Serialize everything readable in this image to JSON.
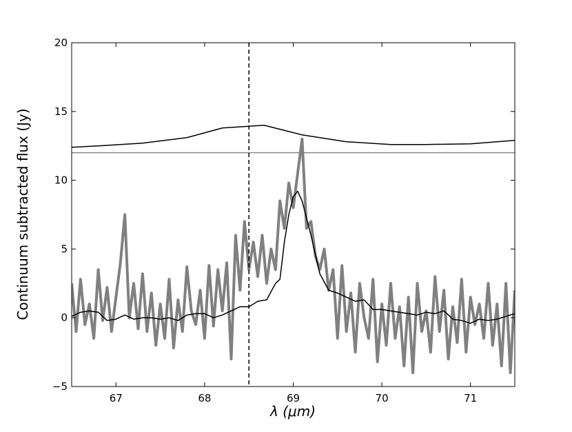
{
  "chart_data": {
    "type": "line",
    "xlabel": "λ (μm)",
    "ylabel": "Continuum subtracted flux (Jy)",
    "xlim": [
      66.5,
      71.5
    ],
    "xticks": [
      67,
      68,
      69,
      70,
      71
    ],
    "ylim": [
      -5,
      20
    ],
    "yticks": [
      {
        "value": -5,
        "label": "−5"
      },
      0,
      5,
      10,
      15,
      20
    ],
    "hline": 12,
    "hline_color": "#888888",
    "vline": 68.5,
    "vline_color": "#000000",
    "series": [
      {
        "color": "#808080",
        "width": 4,
        "x": [
          66.5,
          66.55,
          66.6,
          66.65,
          66.7,
          66.75,
          66.8,
          66.85,
          66.9,
          66.95,
          67.0,
          67.05,
          67.1,
          67.15,
          67.2,
          67.25,
          67.3,
          67.35,
          67.4,
          67.45,
          67.5,
          67.55,
          67.6,
          67.65,
          67.7,
          67.75,
          67.8,
          67.85,
          67.9,
          67.95,
          68.0,
          68.05,
          68.1,
          68.15,
          68.2,
          68.25,
          68.3,
          68.35,
          68.4,
          68.45,
          68.5,
          68.55,
          68.6,
          68.65,
          68.7,
          68.75,
          68.8,
          68.85,
          68.9,
          68.95,
          69.0,
          69.05,
          69.1,
          69.15,
          69.2,
          69.25,
          69.3,
          69.35,
          69.4,
          69.45,
          69.5,
          69.55,
          69.6,
          69.65,
          69.7,
          69.75,
          69.8,
          69.85,
          69.9,
          69.95,
          70.0,
          70.05,
          70.1,
          70.15,
          70.2,
          70.25,
          70.3,
          70.35,
          70.4,
          70.45,
          70.5,
          70.55,
          70.6,
          70.65,
          70.7,
          70.75,
          70.8,
          70.85,
          70.9,
          70.95,
          71.0,
          71.05,
          71.1,
          71.15,
          71.2,
          71.25,
          71.3,
          71.35,
          71.4,
          71.45,
          71.5
        ],
        "values": [
          2.5,
          -1,
          2.8,
          -0.5,
          1,
          -1.5,
          3.5,
          -0.2,
          2.2,
          -1,
          1.5,
          4,
          7.5,
          0,
          2.5,
          -0.8,
          3.2,
          -1,
          1.8,
          -2,
          1,
          -1.5,
          2.8,
          -2.2,
          1.3,
          -1,
          3.7,
          0.5,
          -0.5,
          2,
          -1.5,
          3.8,
          -0.6,
          3.5,
          0.5,
          4,
          -3,
          6,
          2,
          7,
          3.5,
          5.5,
          3,
          6,
          2.5,
          5,
          3.5,
          8.5,
          6.5,
          9.8,
          8,
          10.5,
          13,
          6.5,
          7,
          4.5,
          3.5,
          5,
          2,
          3.5,
          -1.5,
          3.8,
          -1,
          1.8,
          -2.5,
          2.5,
          0,
          -1.5,
          2.8,
          -3.2,
          1,
          -2,
          2.5,
          -1.5,
          0.8,
          -3.5,
          1.5,
          -4,
          2.5,
          -1,
          0.5,
          -2.5,
          3,
          -1,
          2,
          -3,
          0.8,
          -1.8,
          2.8,
          -2.5,
          1.5,
          -0.5,
          1,
          -1.5,
          2.5,
          -2,
          1,
          -3.5,
          2.5,
          -4,
          2
        ]
      },
      {
        "color": "#000000",
        "width": 1.5,
        "x": [
          66.5,
          66.6,
          66.7,
          66.8,
          66.9,
          67.0,
          67.1,
          67.2,
          67.3,
          67.4,
          67.5,
          67.6,
          67.7,
          67.8,
          67.9,
          68.0,
          68.1,
          68.2,
          68.3,
          68.4,
          68.5,
          68.6,
          68.7,
          68.8,
          68.85,
          68.9,
          68.95,
          69.0,
          69.05,
          69.1,
          69.2,
          69.3,
          69.4,
          69.5,
          69.6,
          69.7,
          69.8,
          69.9,
          70.0,
          70.1,
          70.2,
          70.3,
          70.4,
          70.5,
          70.6,
          70.7,
          70.8,
          70.9,
          71.0,
          71.1,
          71.2,
          71.3,
          71.4,
          71.5
        ],
        "values": [
          0.1,
          0.4,
          0.5,
          0.4,
          -0.2,
          -0.1,
          0.2,
          -0.1,
          0,
          0,
          -0.1,
          0,
          -0.2,
          0.2,
          0.3,
          0.3,
          0,
          0.2,
          0.5,
          0.8,
          0.8,
          1.2,
          1.3,
          2.5,
          2.8,
          5.5,
          7.5,
          8.8,
          9.2,
          8.5,
          6,
          3.2,
          2,
          1.8,
          1.5,
          1.2,
          1.3,
          0.6,
          0.6,
          0.5,
          0.4,
          0.3,
          0.2,
          0.4,
          0.3,
          0.5,
          -0.1,
          -0.2,
          -0.4,
          -0.1,
          -0.2,
          -0.1,
          0.1,
          0.3
        ]
      },
      {
        "color": "#000000",
        "width": 1.5,
        "x": [
          66.5,
          66.8,
          67.3,
          67.8,
          68.2,
          68.67,
          69.1,
          69.6,
          70.1,
          70.5,
          71.0,
          71.5
        ],
        "values": [
          12.4,
          12.5,
          12.7,
          13.1,
          13.8,
          14.0,
          13.3,
          12.8,
          12.6,
          12.6,
          12.65,
          12.9
        ]
      }
    ]
  }
}
